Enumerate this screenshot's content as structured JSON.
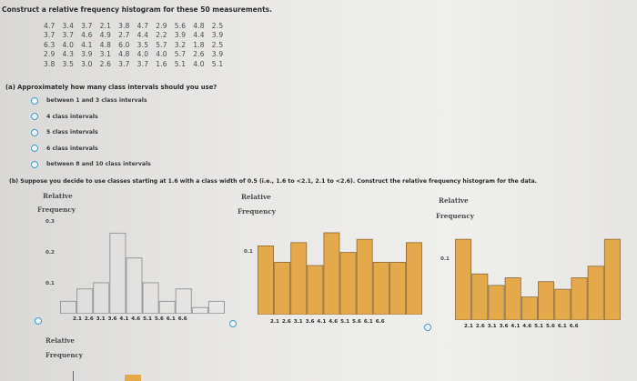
{
  "heading": "Construct a relative frequency histogram for these 50 measurements.",
  "measurements": [
    [
      "4.7",
      "3.4",
      "3.7",
      "2.1",
      "3.8",
      "4.7",
      "2.9",
      "5.6",
      "4.8",
      "2.5"
    ],
    [
      "3.7",
      "3.7",
      "4.6",
      "4.9",
      "2.7",
      "4.4",
      "2.2",
      "3.9",
      "4.4",
      "3.9"
    ],
    [
      "6.3",
      "4.0",
      "4.1",
      "4.8",
      "6.0",
      "3.5",
      "5.7",
      "3.2",
      "1.8",
      "2.5"
    ],
    [
      "2.9",
      "4.3",
      "3.9",
      "3.1",
      "4.8",
      "4.0",
      "4.0",
      "5.7",
      "2.6",
      "3.9"
    ],
    [
      "3.8",
      "3.5",
      "3.0",
      "2.6",
      "3.7",
      "3.7",
      "1.6",
      "5.1",
      "4.0",
      "5.1"
    ]
  ],
  "question_a": "(a) Approximately how many class intervals should you use?",
  "options_a": [
    "between 1 and 3 class intervals",
    "4 class intervals",
    "5 class intervals",
    "6 class intervals",
    "between 8 and 10 class intervals"
  ],
  "question_b": "(b) Suppose you decide to use classes starting at 1.6 with a class width of 0.5 (i.e., 1.6 to <2.1, 2.1 to <2.6). Construct the relative frequency histogram for the data.",
  "bar_color": "#e3a94b",
  "bar_border": "#8a6a3a",
  "chart_data": [
    {
      "type": "bar",
      "ylabel_line1": "Relative",
      "ylabel_line2": "Frequency",
      "yticks": [
        "0.3",
        "0.2",
        "0.1"
      ],
      "ylim": [
        0,
        0.32
      ],
      "x_tick_labels": [
        "2.1",
        "2.6",
        "3.1",
        "3.6",
        "4.1",
        "4.6",
        "5.1",
        "5.6",
        "6.1",
        "6.6"
      ],
      "bin_edges": [
        1.6,
        2.1,
        2.6,
        3.1,
        3.6,
        4.1,
        4.6,
        5.1,
        5.6,
        6.1,
        6.6
      ],
      "values": [
        0.04,
        0.08,
        0.1,
        0.26,
        0.18,
        0.1,
        0.04,
        0.08,
        0.02,
        0.04
      ]
    },
    {
      "type": "bar",
      "ylabel_line1": "Relative",
      "ylabel_line2": "Frequency",
      "yticks": [
        "0.1"
      ],
      "ylim": [
        0,
        0.3
      ],
      "x_tick_labels": [
        "2.1",
        "2.6",
        "3.1",
        "3.6",
        "4.1",
        "4.6",
        "5.1",
        "5.6",
        "6.1",
        "6.6"
      ],
      "bin_edges": [
        1.6,
        2.1,
        2.6,
        3.1,
        3.6,
        4.1,
        4.6,
        5.1,
        5.6,
        6.1,
        6.6
      ],
      "values": [
        0.21,
        0.16,
        0.22,
        0.15,
        0.25,
        0.19,
        0.23,
        0.16,
        0.16,
        0.22
      ]
    },
    {
      "type": "bar",
      "ylabel_line1": "Relative",
      "ylabel_line2": "Frequency",
      "yticks": [
        "0.1"
      ],
      "ylim": [
        0,
        0.26
      ],
      "x_tick_labels": [
        "2.1",
        "2.6",
        "3.1",
        "3.6",
        "4.1",
        "4.6",
        "5.1",
        "5.6",
        "6.1",
        "6.6"
      ],
      "bin_edges": [
        1.6,
        2.1,
        2.6,
        3.1,
        3.6,
        4.1,
        4.6,
        5.1,
        5.6,
        6.1,
        6.6
      ],
      "values": [
        0.21,
        0.12,
        0.09,
        0.11,
        0.06,
        0.1,
        0.08,
        0.11,
        0.14,
        0.21
      ]
    }
  ],
  "bottom_ylabel_line1": "Relative",
  "bottom_ylabel_line2": "Frequency"
}
